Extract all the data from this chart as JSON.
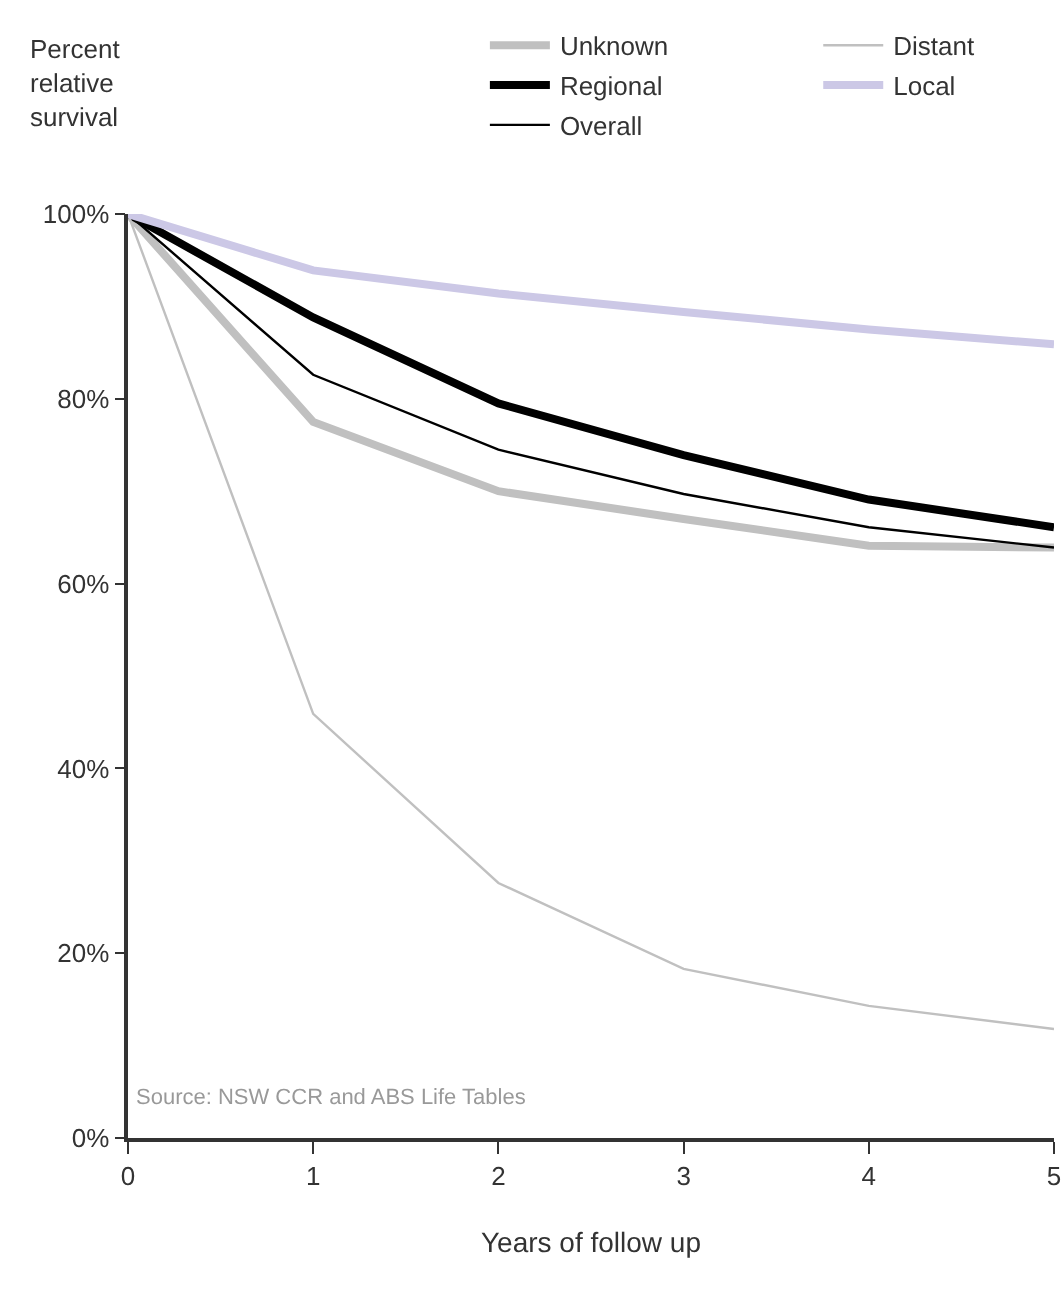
{
  "chart_data": {
    "type": "line",
    "xlabel": "Years of follow up",
    "ylabel": "Percent relative survival",
    "annotations": [
      "Source: NSW CCR and ABS Life Tables"
    ],
    "x": [
      0,
      1,
      2,
      3,
      4,
      5
    ],
    "series": [
      {
        "name": "Unknown",
        "color": "#c0c0c0",
        "values": [
          100,
          77.5,
          70.0,
          67.0,
          64.1,
          63.9
        ]
      },
      {
        "name": "Regional",
        "color": "#000000",
        "values": [
          100,
          88.8,
          79.5,
          73.9,
          69.1,
          66.1
        ]
      },
      {
        "name": "Overall",
        "color": "#000000",
        "values": [
          100,
          82.6,
          74.5,
          69.7,
          66.1,
          63.9
        ]
      },
      {
        "name": "Distant",
        "color": "#c0c0c0",
        "values": [
          100,
          45.9,
          27.6,
          18.3,
          14.3,
          11.8
        ]
      },
      {
        "name": "Local",
        "color": "#ccc8e6",
        "values": [
          100,
          93.9,
          91.4,
          89.4,
          87.5,
          85.9
        ]
      }
    ],
    "xlim": [
      0,
      5
    ],
    "xticks": [
      0,
      1,
      2,
      3,
      4,
      5
    ],
    "ylim": [
      0,
      100
    ],
    "yticks": [
      {
        "value": 0,
        "label": "0%"
      },
      {
        "value": 20,
        "label": "20%"
      },
      {
        "value": 40,
        "label": "40%"
      },
      {
        "value": 60,
        "label": "60%"
      },
      {
        "value": 80,
        "label": "80%"
      },
      {
        "value": 100,
        "label": "100%"
      }
    ],
    "grid": false,
    "legend": "top right",
    "marker": "none",
    "line_style": "solid"
  }
}
